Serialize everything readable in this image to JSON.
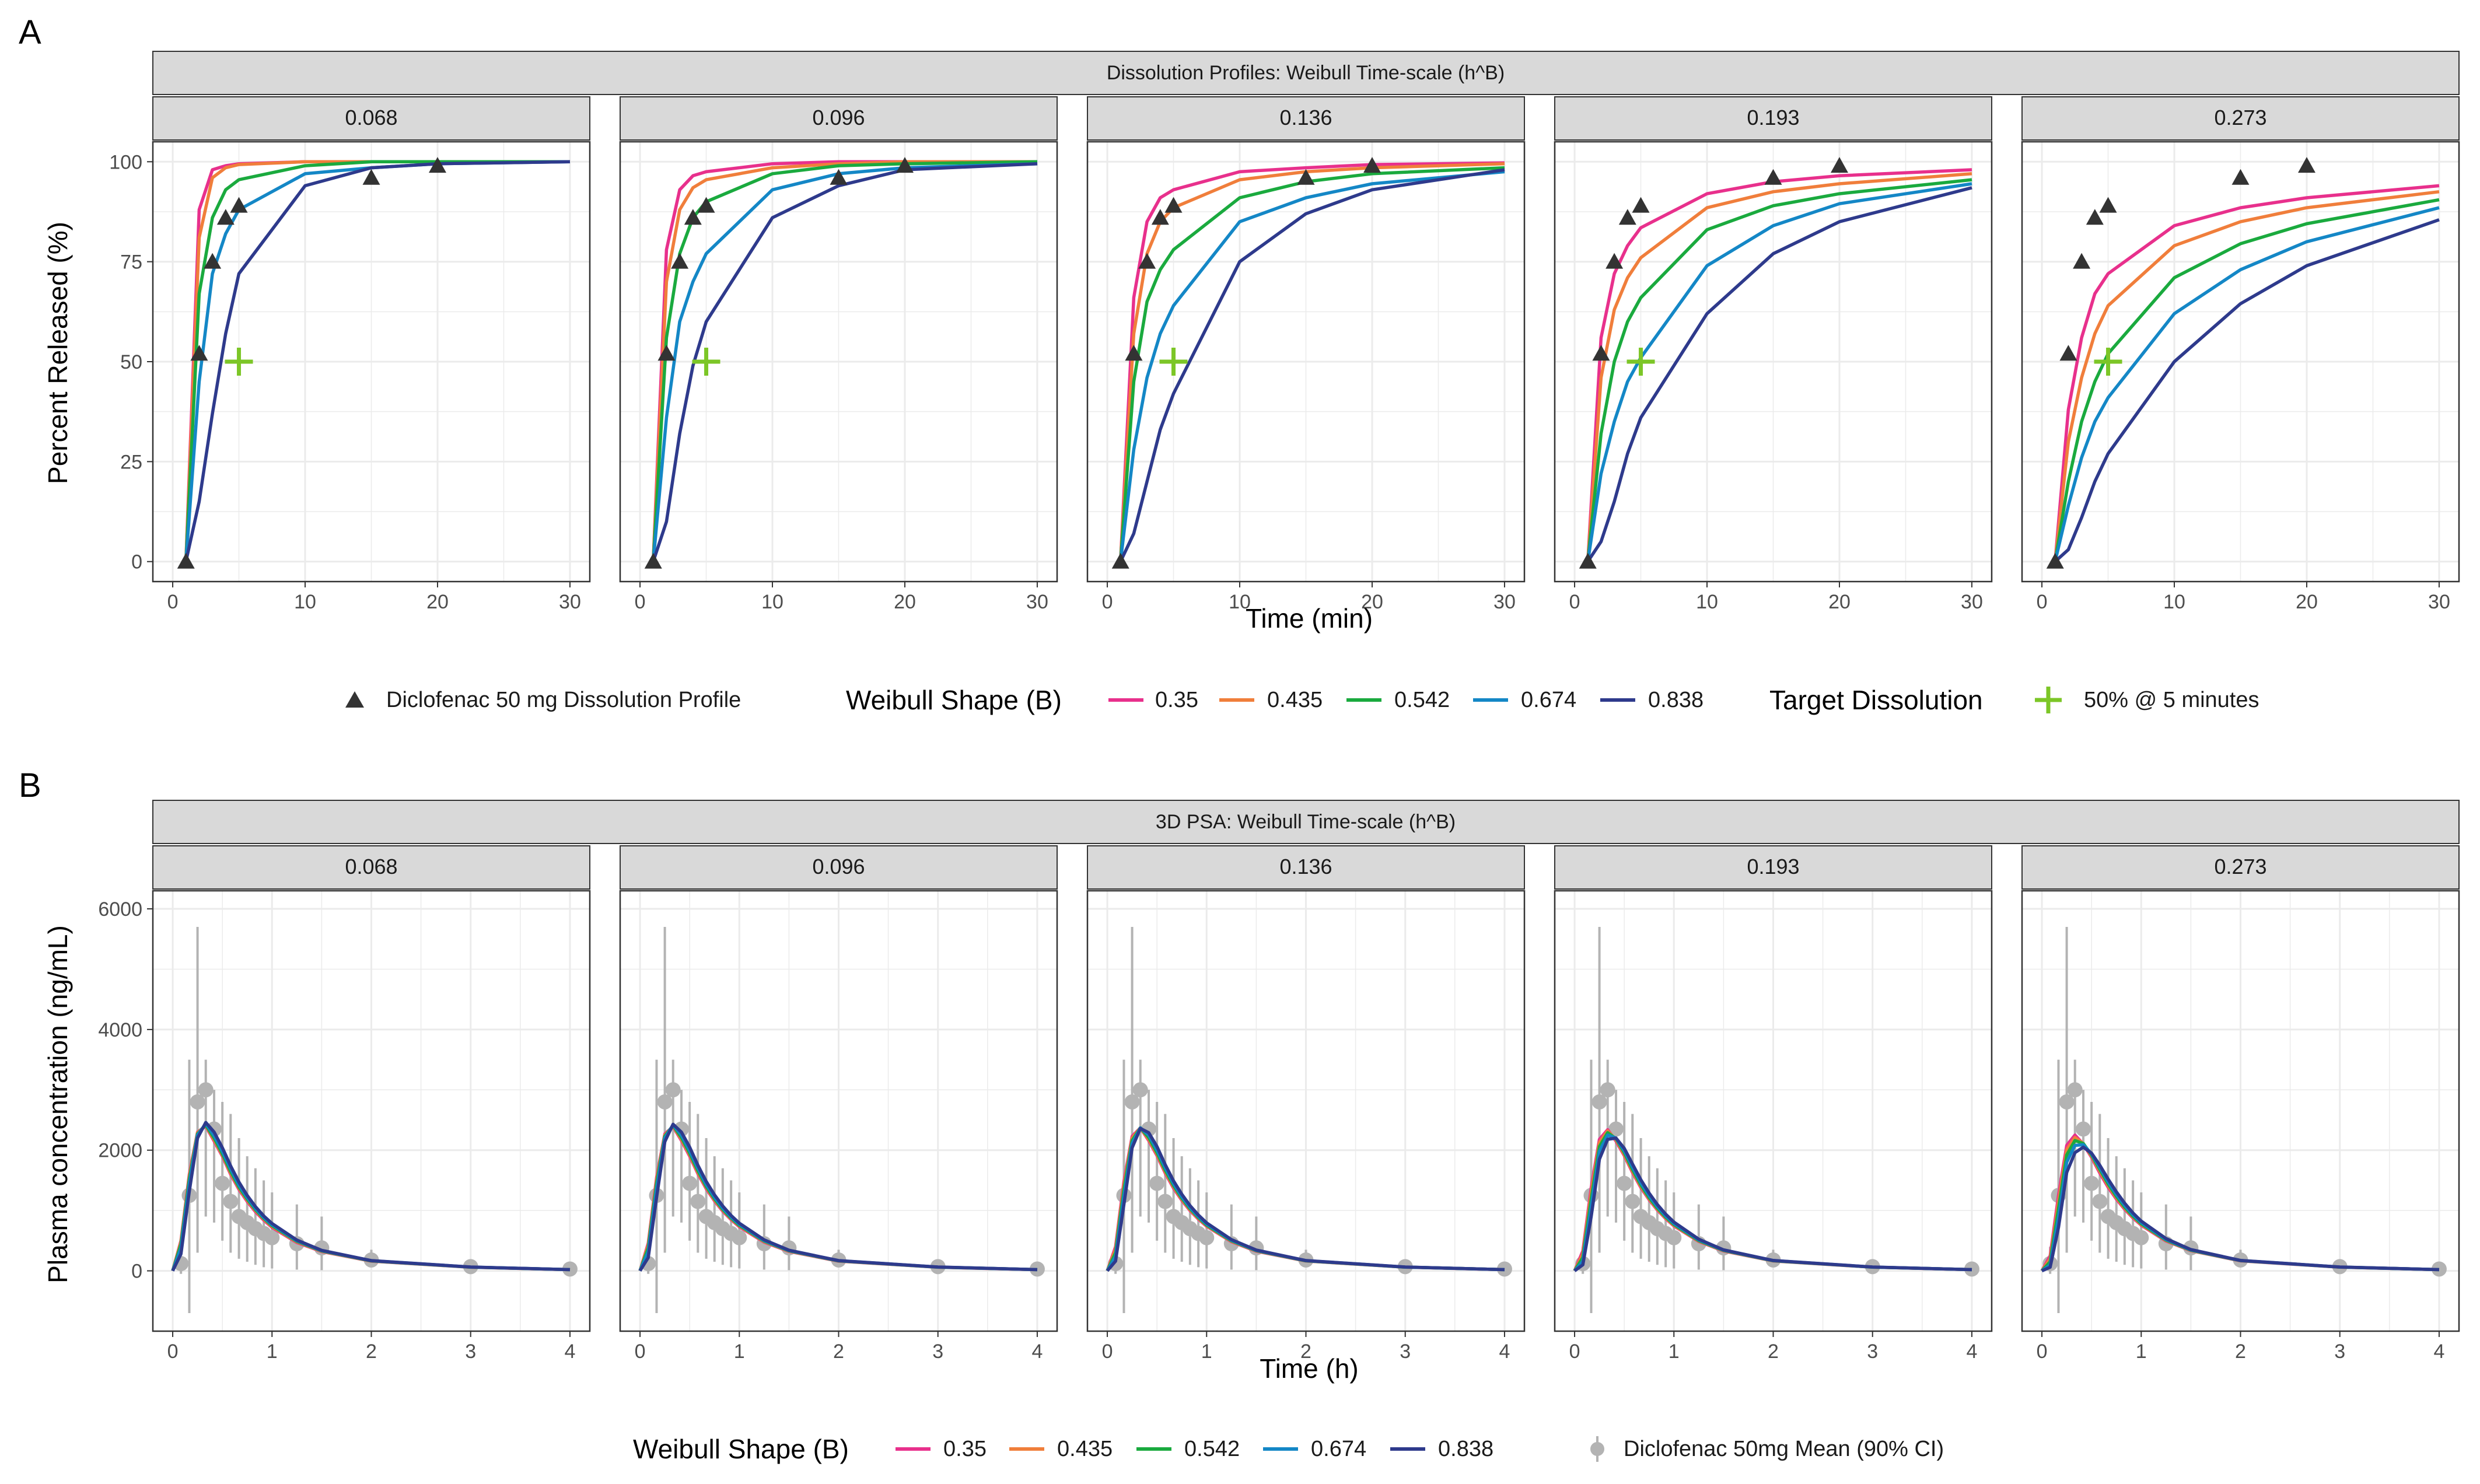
{
  "figure": {
    "panel_a_letter": "A",
    "panel_b_letter": "B"
  },
  "colors": {
    "series": [
      "#e8308c",
      "#f07e3b",
      "#1aaa3e",
      "#1487c6",
      "#2e3a8c"
    ],
    "obs_triangle": "#333333",
    "target_plus": "#7cc627",
    "obs_point": "#b3b3b3",
    "strip_fill": "#d9d9d9",
    "grid": "#ebebeb"
  },
  "chart_data": [
    {
      "type": "line",
      "id": "A",
      "title": "Dissolution Profiles: Weibull Time-scale (h^B)",
      "facet_labels": [
        "0.068",
        "0.096",
        "0.136",
        "0.193",
        "0.273"
      ],
      "facet_values": [
        0.068,
        0.096,
        0.136,
        0.193,
        0.273
      ],
      "xlabel": "Time (min)",
      "ylabel": "Percent Released (%)",
      "xlim": [
        -1.5,
        31.5
      ],
      "ylim": [
        -5,
        105
      ],
      "xticks": [
        0,
        10,
        20,
        30
      ],
      "yticks": [
        0,
        25,
        50,
        75,
        100
      ],
      "x": [
        1,
        2,
        3,
        4,
        5,
        10,
        15,
        20,
        30
      ],
      "series_names": [
        "0.35",
        "0.435",
        "0.542",
        "0.674",
        "0.838"
      ],
      "series": [
        {
          "name": "0.068",
          "curves": [
            [
              0,
              88,
              98,
              99,
              99.5,
              100,
              100,
              100,
              100
            ],
            [
              0,
              81,
              96,
              98.5,
              99.3,
              100,
              100,
              100,
              100
            ],
            [
              0,
              67,
              86,
              93,
              95.5,
              99,
              100,
              100,
              100
            ],
            [
              0,
              45,
              72,
              82,
              88,
              97,
              98.5,
              99.5,
              100
            ],
            [
              0,
              15,
              37,
              57,
              72,
              94,
              98.5,
              99.5,
              100
            ]
          ]
        },
        {
          "name": "0.096",
          "curves": [
            [
              0,
              78,
              93,
              96.5,
              97.5,
              99.5,
              100,
              100,
              100
            ],
            [
              0,
              70,
              88,
              93.5,
              95.5,
              98.5,
              99.5,
              100,
              100
            ],
            [
              0,
              56,
              77,
              86,
              90,
              97,
              99,
              99.5,
              100
            ],
            [
              0,
              36,
              60,
              70,
              77,
              93,
              97,
              98.5,
              99.5
            ],
            [
              0,
              10,
              32,
              49,
              60,
              86,
              94,
              98,
              99.5
            ]
          ]
        },
        {
          "name": "0.136",
          "curves": [
            [
              0,
              66,
              85,
              91,
              93,
              97.5,
              98.5,
              99.3,
              99.7
            ],
            [
              0,
              57,
              77,
              85,
              88.5,
              95.5,
              97.5,
              98.5,
              99.5
            ],
            [
              0,
              45,
              65,
              73,
              78,
              91,
              95,
              97,
              98.5
            ],
            [
              0,
              28,
              46,
              57,
              64,
              85,
              91,
              94.5,
              97.5
            ],
            [
              0,
              7,
              20,
              33,
              42,
              75,
              87,
              93,
              98
            ]
          ]
        },
        {
          "name": "0.193",
          "curves": [
            [
              0,
              56,
              72,
              79,
              83.5,
              92,
              95,
              96.5,
              98
            ],
            [
              0,
              46,
              63,
              71,
              76,
              88.5,
              92.5,
              94.5,
              97
            ],
            [
              0,
              32,
              50,
              60,
              66,
              83,
              89,
              92,
              95.5
            ],
            [
              0,
              22,
              35,
              45,
              51,
              74,
              84,
              89.5,
              94.5
            ],
            [
              0,
              5,
              15,
              27,
              36,
              62,
              77,
              85,
              93.5
            ]
          ]
        },
        {
          "name": "0.273",
          "curves": [
            [
              0,
              38,
              56,
              67,
              72,
              84,
              88.5,
              91,
              94
            ],
            [
              0,
              30,
              46,
              57,
              64,
              79,
              85,
              88.5,
              92.5
            ],
            [
              0,
              20,
              35,
              45,
              52,
              71,
              79.5,
              84.5,
              90.5
            ],
            [
              0,
              14,
              26,
              35,
              41,
              62,
              73,
              80,
              88.5
            ],
            [
              0,
              3,
              11,
              20,
              27,
              50,
              64.5,
              74,
              85.5
            ]
          ]
        }
      ],
      "observed": {
        "label": "Diclofenac 50 mg Dissolution Profile",
        "x": [
          1,
          2,
          3,
          4,
          5,
          15,
          20
        ],
        "y": [
          0,
          52,
          75,
          86,
          89,
          96,
          99
        ]
      },
      "target": {
        "x": 5,
        "y": 50
      },
      "legend": {
        "observed_label": "Diclofenac 50 mg Dissolution Profile",
        "shape_title": "Weibull Shape (B)",
        "target_title": "Target Dissolution",
        "target_label": "50% @ 5 minutes"
      }
    },
    {
      "type": "line",
      "id": "B",
      "title": "3D PSA: Weibull Time-scale (h^B)",
      "facet_labels": [
        "0.068",
        "0.096",
        "0.136",
        "0.193",
        "0.273"
      ],
      "facet_values": [
        0.068,
        0.096,
        0.136,
        0.193,
        0.273
      ],
      "xlabel": "Time (h)",
      "ylabel": "Plasma concentration (ng/mL)",
      "xlim": [
        -0.2,
        4.2
      ],
      "ylim": [
        -1000,
        6300
      ],
      "xticks": [
        0,
        1,
        2,
        3,
        4
      ],
      "yticks": [
        0,
        2000,
        4000,
        6000
      ],
      "x": [
        0,
        0.083,
        0.167,
        0.25,
        0.333,
        0.417,
        0.5,
        0.583,
        0.667,
        0.75,
        0.833,
        0.917,
        1,
        1.25,
        1.5,
        2,
        3,
        4
      ],
      "series_names": [
        "0.35",
        "0.435",
        "0.542",
        "0.674",
        "0.838"
      ],
      "series": [
        {
          "name": "0.068",
          "curves": [
            [
              0,
              500,
              1600,
              2300,
              2400,
              2150,
              1900,
              1600,
              1350,
              1150,
              980,
              840,
              720,
              470,
              320,
              160,
              60,
              20
            ],
            [
              0,
              480,
              1570,
              2290,
              2410,
              2170,
              1920,
              1620,
              1370,
              1170,
              1000,
              855,
              735,
              480,
              325,
              162,
              61,
              20
            ],
            [
              0,
              440,
              1520,
              2270,
              2420,
              2200,
              1940,
              1650,
              1390,
              1190,
              1015,
              870,
              750,
              490,
              330,
              165,
              62,
              20
            ],
            [
              0,
              380,
              1450,
              2250,
              2440,
              2240,
              1980,
              1690,
              1420,
              1215,
              1035,
              885,
              765,
              500,
              335,
              168,
              63,
              20
            ],
            [
              0,
              280,
              1320,
              2200,
              2460,
              2300,
              2040,
              1740,
              1470,
              1250,
              1065,
              910,
              785,
              510,
              340,
              170,
              64,
              20
            ]
          ]
        },
        {
          "name": "0.096",
          "curves": [
            [
              0,
              460,
              1550,
              2270,
              2390,
              2160,
              1900,
              1610,
              1360,
              1160,
              990,
              850,
              730,
              475,
              322,
              160,
              60,
              20
            ],
            [
              0,
              430,
              1510,
              2250,
              2400,
              2180,
              1925,
              1630,
              1380,
              1175,
              1005,
              862,
              742,
              484,
              327,
              163,
              61,
              20
            ],
            [
              0,
              380,
              1450,
              2230,
              2410,
              2210,
              1950,
              1660,
              1400,
              1195,
              1020,
              875,
              755,
              493,
              332,
              165,
              62,
              20
            ],
            [
              0,
              320,
              1370,
              2200,
              2420,
              2250,
              1990,
              1700,
              1430,
              1220,
              1040,
              892,
              770,
              502,
              337,
              168,
              63,
              20
            ],
            [
              0,
              220,
              1220,
              2140,
              2430,
              2300,
              2050,
              1750,
              1480,
              1260,
              1075,
              918,
              790,
              514,
              342,
              170,
              64,
              20
            ]
          ]
        },
        {
          "name": "0.136",
          "curves": [
            [
              0,
              400,
              1480,
              2230,
              2370,
              2160,
              1910,
              1620,
              1370,
              1170,
              1000,
              858,
              738,
              482,
              326,
              162,
              61,
              20
            ],
            [
              0,
              360,
              1420,
              2200,
              2370,
              2180,
              1930,
              1640,
              1390,
              1185,
              1013,
              870,
              748,
              490,
              330,
              164,
              62,
              20
            ],
            [
              0,
              300,
              1340,
              2160,
              2370,
              2210,
              1960,
              1670,
              1415,
              1205,
              1030,
              884,
              760,
              498,
              335,
              166,
              62,
              20
            ],
            [
              0,
              240,
              1240,
              2110,
              2370,
              2250,
              2000,
              1710,
              1445,
              1230,
              1050,
              900,
              775,
              507,
              340,
              169,
              63,
              20
            ],
            [
              0,
              160,
              1100,
              2040,
              2360,
              2290,
              2060,
              1760,
              1490,
              1270,
              1082,
              925,
              795,
              518,
              345,
              171,
              64,
              20
            ]
          ]
        },
        {
          "name": "0.193",
          "curves": [
            [
              0,
              330,
              1380,
              2180,
              2340,
              2150,
              1910,
              1630,
              1380,
              1180,
              1010,
              866,
              745,
              487,
              329,
              163,
              61,
              20
            ],
            [
              0,
              280,
              1300,
              2130,
              2320,
              2170,
              1930,
              1650,
              1400,
              1195,
              1022,
              877,
              755,
              494,
              333,
              165,
              62,
              20
            ],
            [
              0,
              220,
              1190,
              2060,
              2290,
              2190,
              1960,
              1680,
              1425,
              1215,
              1040,
              892,
              768,
              502,
              338,
              167,
              62,
              20
            ],
            [
              0,
              160,
              1070,
              1980,
              2250,
              2200,
              1990,
              1720,
              1460,
              1245,
              1065,
              912,
              785,
              513,
              343,
              170,
              63,
              20
            ],
            [
              0,
              100,
              900,
              1850,
              2180,
              2200,
              2030,
              1770,
              1510,
              1290,
              1100,
              940,
              808,
              525,
              348,
              172,
              64,
              20
            ]
          ]
        },
        {
          "name": "0.273",
          "curves": [
            [
              0,
              250,
              1250,
              2080,
              2250,
              2100,
              1880,
              1620,
              1385,
              1190,
              1022,
              878,
              757,
              494,
              333,
              165,
              61,
              20
            ],
            [
              0,
              200,
              1150,
              2010,
              2210,
              2110,
              1900,
              1650,
              1410,
              1210,
              1038,
              892,
              768,
              502,
              337,
              167,
              62,
              20
            ],
            [
              0,
              150,
              1030,
              1920,
              2160,
              2110,
              1920,
              1680,
              1440,
              1235,
              1058,
              908,
              782,
              510,
              342,
              169,
              63,
              20
            ],
            [
              0,
              100,
              890,
              1800,
              2080,
              2090,
              1940,
              1710,
              1475,
              1265,
              1085,
              930,
              800,
              520,
              347,
              171,
              63,
              20
            ],
            [
              0,
              60,
              720,
              1630,
              1960,
              2050,
              1950,
              1750,
              1520,
              1310,
              1122,
              960,
              825,
              534,
              353,
              173,
              64,
              20
            ]
          ]
        }
      ],
      "observed": {
        "label": "Diclofenac 50mg Mean (90% CI)",
        "x": [
          0.083,
          0.167,
          0.25,
          0.333,
          0.417,
          0.5,
          0.583,
          0.667,
          0.75,
          0.833,
          0.917,
          1,
          1.25,
          1.5,
          2,
          3,
          4
        ],
        "y": [
          120,
          1250,
          2800,
          3000,
          2350,
          1450,
          1150,
          900,
          800,
          700,
          620,
          550,
          450,
          380,
          180,
          70,
          30
        ],
        "lo": [
          -50,
          -700,
          300,
          900,
          800,
          500,
          300,
          200,
          150,
          100,
          60,
          40,
          20,
          10,
          60,
          20,
          10
        ],
        "hi": [
          400,
          3500,
          5700,
          3500,
          3000,
          2800,
          2600,
          2200,
          1900,
          1700,
          1500,
          1300,
          1100,
          900,
          350,
          130,
          60
        ]
      },
      "legend": {
        "shape_title": "Weibull Shape (B)",
        "observed_label": "Diclofenac 50mg Mean (90% CI)"
      }
    }
  ]
}
